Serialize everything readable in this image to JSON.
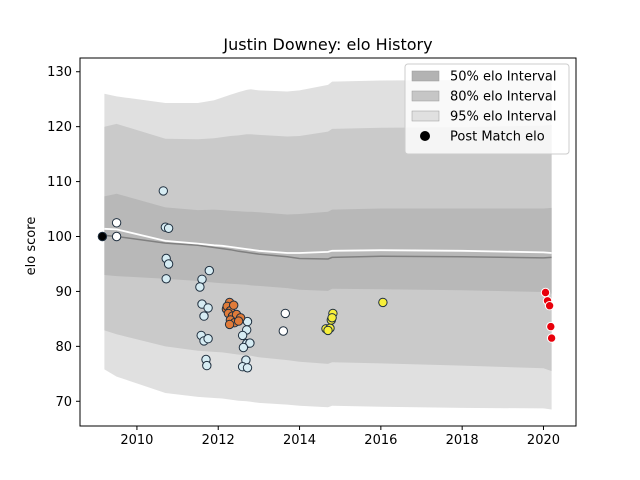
{
  "chart_data": {
    "type": "scatter",
    "title": "Justin Downey: elo History",
    "xlabel": "",
    "ylabel": "elo score",
    "xlim": [
      2008.6,
      2020.8
    ],
    "ylim": [
      65.5,
      132.5
    ],
    "x_ticks": [
      2010,
      2012,
      2014,
      2016,
      2018,
      2020
    ],
    "y_ticks": [
      70,
      80,
      90,
      100,
      110,
      120,
      130
    ],
    "grid": false,
    "legend": {
      "placement": "top-right",
      "entries": [
        {
          "label": "50% elo Interval",
          "color": "#b3b3b3"
        },
        {
          "label": "80% elo Interval",
          "color": "#c6c6c6"
        },
        {
          "label": "95% elo Interval",
          "color": "#e0e0e0"
        },
        {
          "label": "Post Match elo",
          "color": "#000000"
        }
      ]
    },
    "bands": {
      "x": [
        2009.2,
        2009.5,
        2010.7,
        2011.5,
        2011.9,
        2012.1,
        2012.3,
        2012.5,
        2012.7,
        2012.8,
        2013.0,
        2013.7,
        2014.0,
        2014.7,
        2014.8,
        2016.0,
        2018.0,
        2020.0,
        2020.2
      ],
      "median": [
        100.2,
        100.0,
        98.8,
        98.4,
        98.0,
        97.8,
        97.6,
        97.3,
        97.1,
        97.0,
        96.8,
        96.3,
        96.0,
        95.9,
        96.2,
        96.4,
        96.3,
        96.1,
        96.2
      ],
      "mean": [
        101.4,
        101.3,
        99.2,
        98.7,
        98.4,
        98.3,
        98.1,
        97.9,
        97.7,
        97.6,
        97.4,
        97.0,
        97.0,
        97.2,
        97.4,
        97.5,
        97.4,
        97.1,
        97.0
      ],
      "p50_low": [
        93.0,
        92.8,
        92.3,
        91.9,
        91.6,
        91.5,
        91.4,
        91.3,
        91.2,
        91.1,
        91.0,
        90.6,
        90.3,
        90.1,
        90.5,
        90.4,
        90.2,
        89.9,
        89.6
      ],
      "p50_high": [
        107.3,
        107.8,
        105.3,
        104.8,
        104.9,
        104.8,
        104.7,
        104.6,
        104.5,
        104.5,
        104.4,
        104.0,
        104.1,
        104.5,
        104.9,
        105.1,
        105.1,
        105.1,
        105.2
      ],
      "p80_low": [
        82.9,
        82.2,
        80.0,
        79.2,
        79.0,
        78.9,
        78.7,
        78.5,
        78.4,
        78.3,
        78.0,
        77.5,
        77.2,
        76.8,
        77.1,
        76.9,
        76.5,
        76.0,
        75.5
      ],
      "p80_high": [
        120.0,
        120.5,
        117.8,
        117.7,
        117.9,
        118.1,
        118.3,
        118.4,
        118.6,
        118.6,
        118.5,
        118.2,
        118.3,
        119.1,
        119.6,
        119.8,
        119.9,
        120.2,
        120.3
      ],
      "p95_low": [
        75.8,
        74.5,
        71.5,
        70.8,
        70.6,
        70.5,
        70.3,
        70.1,
        70.0,
        69.9,
        69.7,
        69.4,
        69.2,
        68.9,
        69.2,
        69.0,
        68.8,
        68.7,
        68.5
      ],
      "p95_high": [
        126.0,
        125.5,
        124.3,
        124.3,
        124.8,
        125.3,
        125.8,
        126.3,
        126.7,
        126.8,
        126.6,
        126.4,
        126.6,
        127.6,
        128.2,
        128.4,
        128.5,
        128.7,
        128.8
      ]
    },
    "series": [
      {
        "color": "#000000",
        "points": [
          [
            2009.15,
            100.0
          ]
        ]
      },
      {
        "color": "#ffffff",
        "points": [
          [
            2009.5,
            102.5
          ],
          [
            2009.5,
            100.0
          ],
          [
            2013.65,
            86.0
          ],
          [
            2013.6,
            82.8
          ]
        ]
      },
      {
        "color": "#d6ecf3",
        "points": [
          [
            2010.65,
            108.3
          ],
          [
            2010.7,
            101.7
          ],
          [
            2010.78,
            101.5
          ],
          [
            2010.72,
            96.0
          ],
          [
            2010.78,
            95.0
          ],
          [
            2010.72,
            92.3
          ],
          [
            2011.78,
            93.8
          ],
          [
            2011.6,
            92.2
          ],
          [
            2011.55,
            90.8
          ],
          [
            2011.6,
            87.7
          ],
          [
            2011.75,
            87.0
          ],
          [
            2011.65,
            85.5
          ],
          [
            2011.58,
            82.0
          ],
          [
            2011.65,
            81.0
          ],
          [
            2011.75,
            81.4
          ],
          [
            2011.7,
            77.6
          ],
          [
            2011.72,
            76.5
          ],
          [
            2012.72,
            84.5
          ],
          [
            2012.7,
            83.0
          ],
          [
            2012.6,
            82.0
          ],
          [
            2012.7,
            80.5
          ],
          [
            2012.78,
            80.6
          ],
          [
            2012.62,
            79.8
          ],
          [
            2012.68,
            77.5
          ],
          [
            2012.6,
            76.3
          ],
          [
            2012.72,
            76.1
          ]
        ]
      },
      {
        "color": "#e07b39",
        "points": [
          [
            2012.2,
            86.8
          ],
          [
            2012.28,
            88.0
          ],
          [
            2012.22,
            87.3
          ],
          [
            2012.3,
            86.5
          ],
          [
            2012.38,
            87.5
          ],
          [
            2012.25,
            86.0
          ],
          [
            2012.35,
            85.5
          ],
          [
            2012.45,
            85.8
          ],
          [
            2012.55,
            85.2
          ],
          [
            2012.3,
            84.8
          ],
          [
            2012.4,
            84.3
          ],
          [
            2012.5,
            84.6
          ],
          [
            2012.28,
            84.0
          ]
        ]
      },
      {
        "color": "#f7ef3c",
        "points": [
          [
            2014.65,
            83.2
          ],
          [
            2014.75,
            83.3
          ],
          [
            2014.7,
            82.9
          ],
          [
            2014.78,
            84.8
          ],
          [
            2014.82,
            86.0
          ],
          [
            2014.8,
            85.2
          ],
          [
            2016.05,
            88.0
          ]
        ]
      },
      {
        "color": "#e8000b",
        "points": [
          [
            2020.05,
            89.8
          ],
          [
            2020.1,
            88.3
          ],
          [
            2020.15,
            87.4
          ],
          [
            2020.18,
            83.6
          ],
          [
            2020.2,
            81.5
          ]
        ]
      }
    ]
  }
}
